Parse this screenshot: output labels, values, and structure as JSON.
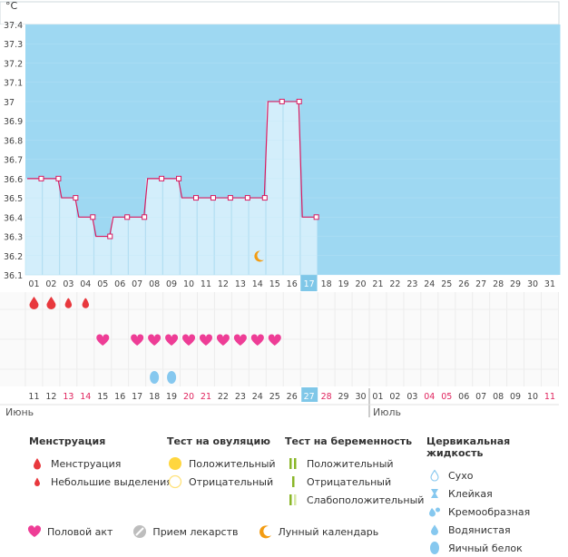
{
  "chart_data": {
    "type": "area",
    "unit_label": "°C",
    "ylim": [
      36.1,
      37.4
    ],
    "y_ticks": [
      "37.4",
      "37.3",
      "37.2",
      "37.1",
      "37",
      "36.9",
      "36.8",
      "36.7",
      "36.6",
      "36.5",
      "36.4",
      "36.3",
      "36.2",
      "36.1"
    ],
    "days": [
      "01",
      "02",
      "03",
      "04",
      "05",
      "06",
      "07",
      "08",
      "09",
      "10",
      "11",
      "12",
      "13",
      "14",
      "15",
      "16",
      "17",
      "18",
      "19",
      "20",
      "21",
      "22",
      "23",
      "24",
      "25",
      "26",
      "27",
      "28",
      "29",
      "30",
      "31"
    ],
    "temperatures": [
      36.6,
      36.6,
      36.5,
      36.4,
      36.3,
      36.4,
      36.4,
      36.6,
      36.6,
      36.5,
      36.5,
      36.5,
      36.5,
      36.5,
      37.0,
      37.0,
      36.4
    ],
    "current_day": "17",
    "moon_day_index": 13,
    "menstruation": [
      {
        "day_index": 0,
        "type": "heavy"
      },
      {
        "day_index": 1,
        "type": "heavy"
      },
      {
        "day_index": 2,
        "type": "light"
      },
      {
        "day_index": 3,
        "type": "light"
      }
    ],
    "intercourse_day_indices": [
      4,
      6,
      7,
      8,
      9,
      10,
      11,
      12,
      13,
      14
    ],
    "cervical_egg_white_indices": [
      7,
      8
    ],
    "dates": [
      {
        "label": "11",
        "red": false
      },
      {
        "label": "12",
        "red": false
      },
      {
        "label": "13",
        "red": true
      },
      {
        "label": "14",
        "red": true
      },
      {
        "label": "15",
        "red": false
      },
      {
        "label": "16",
        "red": false
      },
      {
        "label": "17",
        "red": false
      },
      {
        "label": "18",
        "red": false
      },
      {
        "label": "19",
        "red": false
      },
      {
        "label": "20",
        "red": true
      },
      {
        "label": "21",
        "red": true
      },
      {
        "label": "22",
        "red": false
      },
      {
        "label": "23",
        "red": false
      },
      {
        "label": "24",
        "red": false
      },
      {
        "label": "25",
        "red": false
      },
      {
        "label": "26",
        "red": false
      },
      {
        "label": "27",
        "red": false,
        "current": true
      },
      {
        "label": "28",
        "red": true
      },
      {
        "label": "29",
        "red": false
      },
      {
        "label": "30",
        "red": false
      },
      {
        "label": "01",
        "red": false
      },
      {
        "label": "02",
        "red": false
      },
      {
        "label": "03",
        "red": false
      },
      {
        "label": "04",
        "red": true
      },
      {
        "label": "05",
        "red": true
      },
      {
        "label": "06",
        "red": false
      },
      {
        "label": "07",
        "red": false
      },
      {
        "label": "08",
        "red": false
      },
      {
        "label": "09",
        "red": false
      },
      {
        "label": "10",
        "red": false
      },
      {
        "label": "11",
        "red": true
      }
    ],
    "month_left": "Июнь",
    "month_right": "Июль",
    "month_split_index": 20
  },
  "colors": {
    "background": "#9ed8f2",
    "bar_fill": "#d3eefb",
    "bar_current": "#7fc7e8",
    "line": "#d81b60",
    "heart": "#ee3d96",
    "drop_red": "#e8383d",
    "cervical_blue": "#86c8ef",
    "ovulation_pos": "#ffd63f",
    "ovulation_neg": "#ffe27a",
    "test_green": "#8ab628",
    "test_light": "#d6e8a4",
    "moon": "#f39c12",
    "red_date": "#e0245e",
    "grey_text": "#555555"
  },
  "legend": {
    "menstruation": {
      "title": "Менструация",
      "items": [
        "Менструация",
        "Небольшие выделения"
      ]
    },
    "ovulation_test": {
      "title": "Тест на овуляцию",
      "items": [
        "Положительный",
        "Отрицательный"
      ]
    },
    "pregnancy_test": {
      "title": "Тест на беременность",
      "items": [
        "Положительный",
        "Отрицательный",
        "Слабоположительный"
      ]
    },
    "cervical": {
      "title": "Цервикальная жидкость",
      "items": [
        "Сухо",
        "Клейкая",
        "Кремообразная",
        "Водянистая",
        "Яичный белок"
      ]
    },
    "bottom": {
      "intercourse": "Половой акт",
      "medicine": "Прием лекарств",
      "lunar": "Лунный календарь"
    }
  }
}
